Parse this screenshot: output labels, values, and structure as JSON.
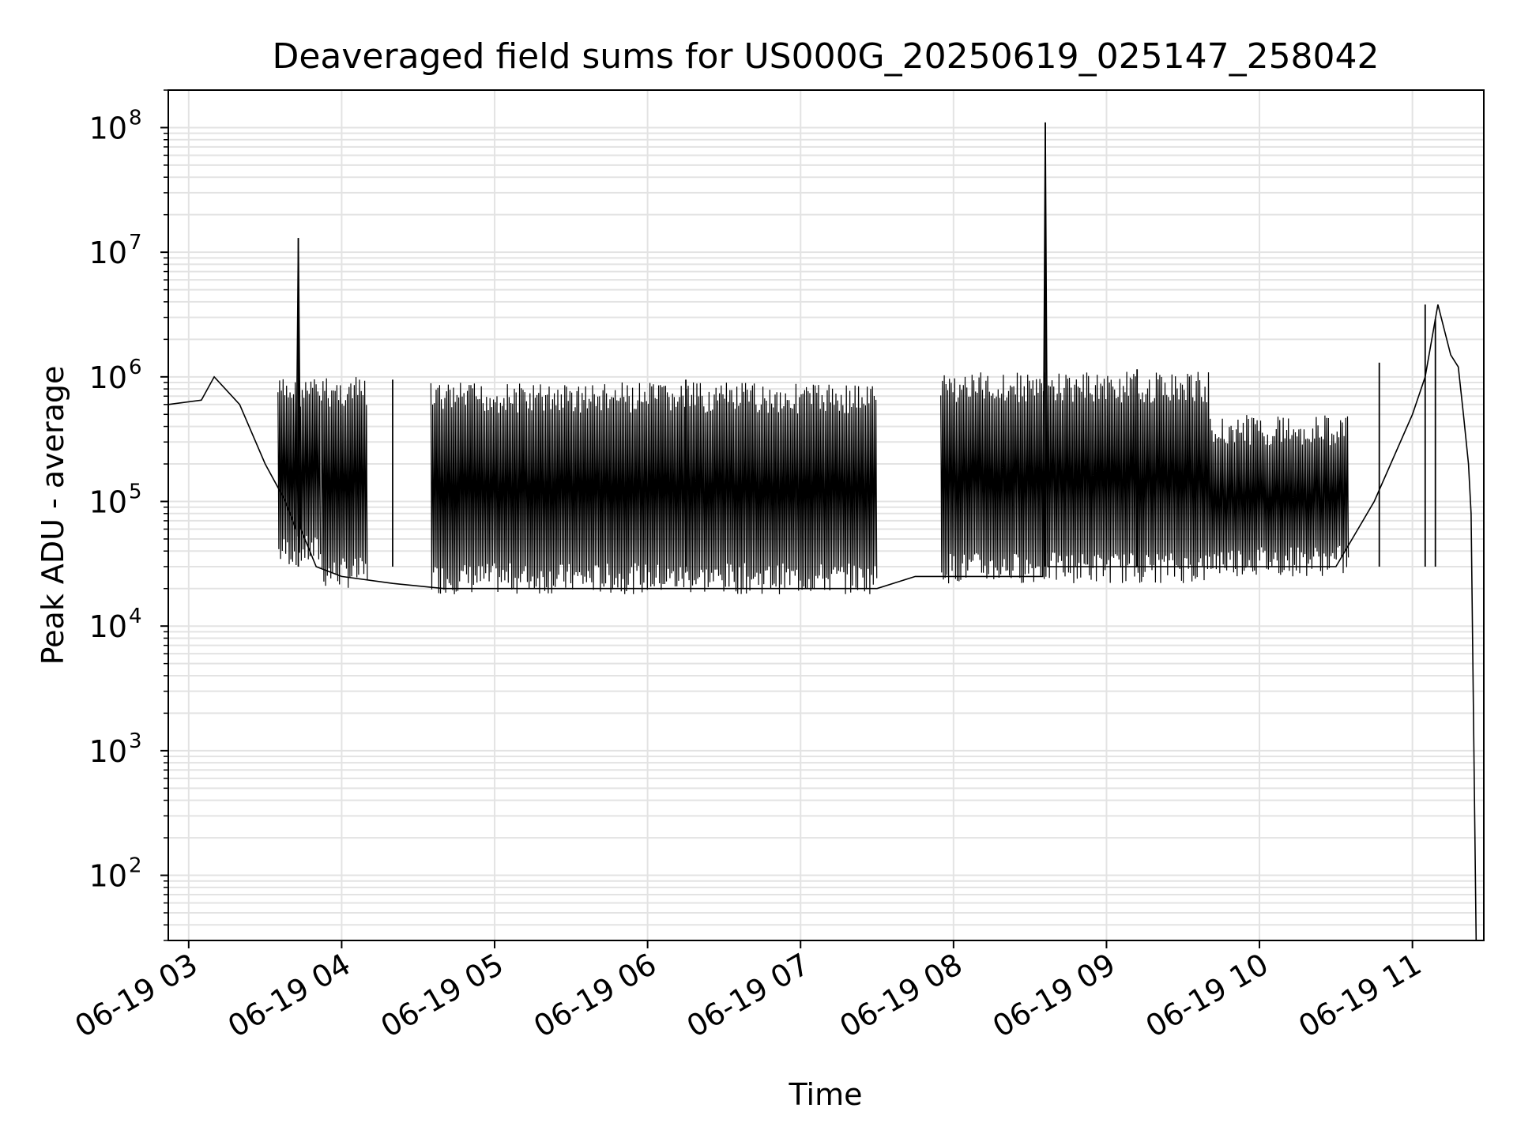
{
  "chart_data": {
    "type": "line",
    "title": "Deaveraged field sums for US000G_20250619_025147_258042",
    "xlabel": "Time",
    "ylabel": "Peak ADU - average",
    "yscale": "log",
    "ylim": [
      30,
      200000000
    ],
    "xlim": [
      "06-19 02:52",
      "06-19 11:28"
    ],
    "grid": true,
    "x_ticks": [
      {
        "time": "06-19 03:00",
        "label": "06-19 03"
      },
      {
        "time": "06-19 04:00",
        "label": "06-19 04"
      },
      {
        "time": "06-19 05:00",
        "label": "06-19 05"
      },
      {
        "time": "06-19 06:00",
        "label": "06-19 06"
      },
      {
        "time": "06-19 07:00",
        "label": "06-19 07"
      },
      {
        "time": "06-19 08:00",
        "label": "06-19 08"
      },
      {
        "time": "06-19 09:00",
        "label": "06-19 09"
      },
      {
        "time": "06-19 10:00",
        "label": "06-19 10"
      },
      {
        "time": "06-19 11:00",
        "label": "06-19 11"
      }
    ],
    "y_ticks": [
      {
        "value": 100,
        "base": "10",
        "exp": "2"
      },
      {
        "value": 1000,
        "base": "10",
        "exp": "3"
      },
      {
        "value": 10000,
        "base": "10",
        "exp": "4"
      },
      {
        "value": 100000,
        "base": "10",
        "exp": "5"
      },
      {
        "value": 1000000,
        "base": "10",
        "exp": "6"
      },
      {
        "value": 10000000,
        "base": "10",
        "exp": "7"
      },
      {
        "value": 100000000,
        "base": "10",
        "exp": "8"
      }
    ],
    "series": [
      {
        "color": "#000000",
        "data": [
          [
            "06-19 02:52",
            600000
          ],
          [
            "06-19 03:05",
            650000
          ],
          [
            "06-19 03:10",
            1000000
          ],
          [
            "06-19 03:20",
            600000
          ],
          [
            "06-19 03:30",
            200000
          ],
          [
            "06-19 03:38",
            100000
          ],
          [
            "06-19 03:42",
            60000
          ],
          [
            "06-19 03:43",
            13000000
          ],
          [
            "06-19 03:44",
            60000
          ],
          [
            "06-19 03:50",
            30000
          ],
          [
            "06-19 04:00",
            25000
          ],
          [
            "06-19 04:20",
            22000
          ],
          [
            "06-19 04:40",
            20000
          ],
          [
            "06-19 05:00",
            20000
          ],
          [
            "06-19 06:00",
            20000
          ],
          [
            "06-19 07:00",
            20000
          ],
          [
            "06-19 07:30",
            20000
          ],
          [
            "06-19 07:45",
            25000
          ],
          [
            "06-19 08:00",
            25000
          ],
          [
            "06-19 08:35",
            25000
          ],
          [
            "06-19 08:36",
            110000000
          ],
          [
            "06-19 08:37",
            30000
          ],
          [
            "06-19 09:00",
            30000
          ],
          [
            "06-19 09:30",
            30000
          ],
          [
            "06-19 10:00",
            30000
          ],
          [
            "06-19 10:30",
            30000
          ],
          [
            "06-19 10:45",
            100000
          ],
          [
            "06-19 11:00",
            500000
          ],
          [
            "06-19 11:05",
            1000000
          ],
          [
            "06-19 11:10",
            3800000
          ],
          [
            "06-19 11:15",
            1500000
          ],
          [
            "06-19 11:18",
            1200000
          ],
          [
            "06-19 11:20",
            500000
          ],
          [
            "06-19 11:22",
            200000
          ],
          [
            "06-19 11:23",
            80000
          ],
          [
            "06-19 11:25",
            30
          ]
        ],
        "range_bands": [
          {
            "start": "06-19 03:35",
            "end": "06-19 03:52",
            "low": 30000,
            "high": 1000000
          },
          {
            "start": "06-19 03:52",
            "end": "06-19 04:10",
            "low": 20000,
            "high": 1000000
          },
          {
            "start": "06-19 04:35",
            "end": "06-19 07:30",
            "low": 18000,
            "high": 900000
          },
          {
            "start": "06-19 07:55",
            "end": "06-19 09:40",
            "low": 22000,
            "high": 1100000
          },
          {
            "start": "06-19 09:40",
            "end": "06-19 10:35",
            "low": 25000,
            "high": 500000
          }
        ],
        "spikes": [
          [
            "06-19 03:43",
            13000000
          ],
          [
            "06-19 08:36",
            110000000
          ],
          [
            "06-19 11:05",
            3800000
          ],
          [
            "06-19 11:09",
            2900000
          ],
          [
            "06-19 10:47",
            1300000
          ],
          [
            "06-19 04:20",
            950000
          ],
          [
            "06-19 06:15",
            950000
          ],
          [
            "06-19 09:12",
            1150000
          ]
        ]
      }
    ]
  }
}
